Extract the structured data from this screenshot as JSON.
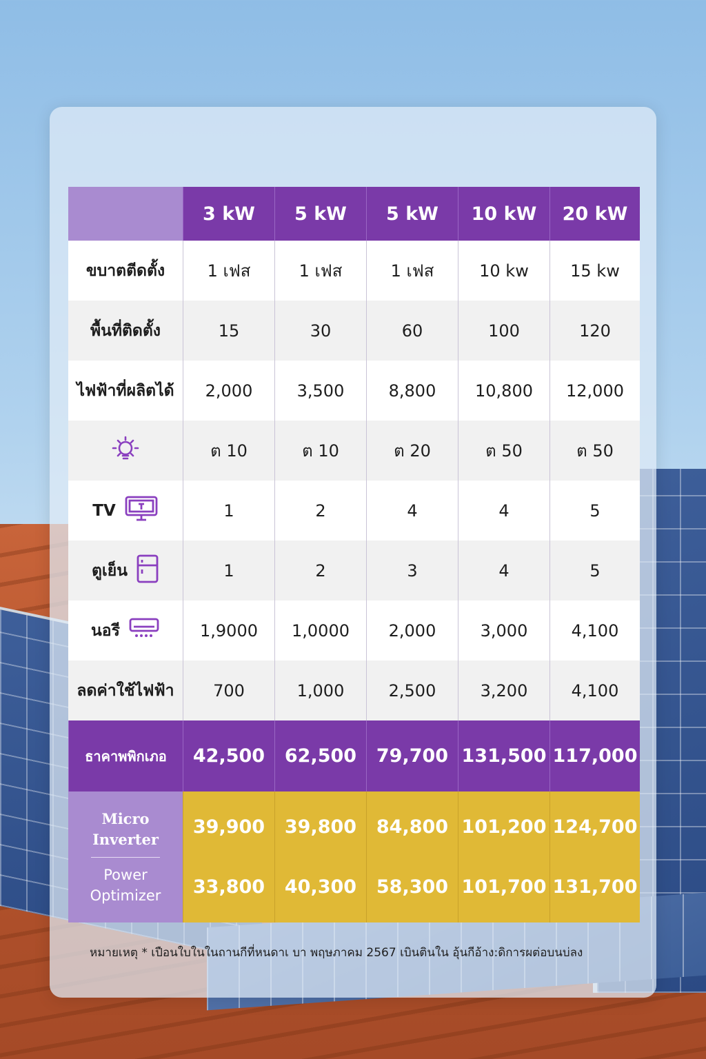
{
  "header": {
    "columns": [
      "3 kW",
      "5 kW",
      "5 kW",
      "10 kW",
      "20 kW"
    ]
  },
  "rows": [
    {
      "label": "ขบาตตีดตั้ง",
      "icon": "",
      "values": [
        "1 เฟส",
        "1 เฟส",
        "1 เฟส",
        "10 kw",
        "15 kw"
      ]
    },
    {
      "label": "พื้นที่ติดตั้ง",
      "icon": "",
      "values": [
        "15",
        "30",
        "60",
        "100",
        "120"
      ]
    },
    {
      "label": "ไฟฟ้าที่ผลิตได้",
      "icon": "",
      "values": [
        "2,000",
        "3,500",
        "8,800",
        "10,800",
        "12,000"
      ]
    },
    {
      "label": "",
      "icon": "lightbulb-icon",
      "values": [
        "ต 10",
        "ต 10",
        "ต 20",
        "ต 50",
        "ต 50"
      ]
    },
    {
      "label": "TV",
      "icon": "tv-icon",
      "values": [
        "1",
        "2",
        "4",
        "4",
        "5"
      ]
    },
    {
      "label": "ตูเย็น",
      "icon": "fridge-icon",
      "values": [
        "1",
        "2",
        "3",
        "4",
        "5"
      ]
    },
    {
      "label": "นอรี",
      "icon": "air-conditioner-icon",
      "values": [
        "1,9000",
        "1,0000",
        "2,000",
        "3,000",
        "4,100"
      ]
    },
    {
      "label": "ลดค่าใช้ไฟฟ้า",
      "icon": "",
      "values": [
        "700",
        "1,000",
        "2,500",
        "3,200",
        "4,100"
      ]
    }
  ],
  "price_row": {
    "label": "ธาคาพพิกเภอ",
    "values": [
      "42,500",
      "62,500",
      "79,700",
      "131,500",
      "117,000"
    ]
  },
  "options": {
    "micro_label": "Micro Inverter",
    "power_label": "Power Optimizer",
    "micro_values": [
      "39,900",
      "39,800",
      "84,800",
      "101,200",
      "124,700"
    ],
    "power_values": [
      "33,800",
      "40,300",
      "58,300",
      "101,700",
      "131,700"
    ]
  },
  "footnote": "หมายเหตุ * เปือนใบในในถานกีที่หนดาเ บา พฤษภาคม 2567 เบินตินใน อุ้นกีอ้าง:ดิการผต่อบนบ่ลง",
  "colors": {
    "purple": "#7a3aa8",
    "lavender": "#a98bd0",
    "gold": "#e0b936"
  }
}
